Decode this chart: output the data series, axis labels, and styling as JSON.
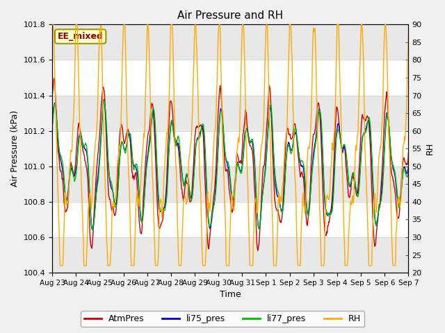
{
  "title": "Air Pressure and RH",
  "xlabel": "Time",
  "ylabel_left": "Air Pressure (kPa)",
  "ylabel_right": "RH",
  "label_box": "EE_mixed",
  "series_colors": {
    "AtmPres": "#cc0000",
    "li75_pres": "#0000cc",
    "li77_pres": "#00bb00",
    "RH": "#ffaa00"
  },
  "ylim_left": [
    100.4,
    101.8
  ],
  "ylim_right": [
    20,
    90
  ],
  "yticks_left": [
    100.4,
    100.6,
    100.8,
    101.0,
    101.2,
    101.4,
    101.6,
    101.8
  ],
  "yticks_right": [
    20,
    25,
    30,
    35,
    40,
    45,
    50,
    55,
    60,
    65,
    70,
    75,
    80,
    85,
    90
  ],
  "bg_color": "#f0f0f0",
  "plot_bg_color": "#ffffff",
  "band_colors": [
    "#e8e8e8",
    "#ffffff"
  ],
  "n_points": 720,
  "xtick_labels": [
    "Aug 23",
    "Aug 24",
    "Aug 25",
    "Aug 26",
    "Aug 27",
    "Aug 28",
    "Aug 29",
    "Aug 30",
    "Aug 31",
    "Sep 1",
    "Sep 2",
    "Sep 3",
    "Sep 4",
    "Sep 5",
    "Sep 6",
    "Sep 7"
  ],
  "line_width": 1.0,
  "figsize": [
    6.4,
    4.8
  ],
  "dpi": 100
}
